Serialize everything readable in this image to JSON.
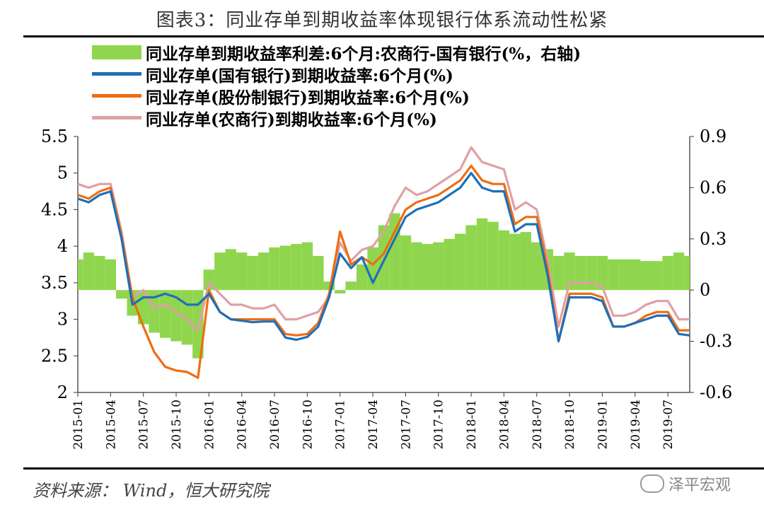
{
  "title": "图表3：同业存单到期收益率体现银行体系流动性松紧",
  "legend": [
    {
      "label": "同业存单到期收益率利差:6个月:农商行-国有银行(%，右轴)",
      "color": "#8fd64e",
      "kind": "area"
    },
    {
      "label": "同业存单(国有银行)到期收益率:6个月(%)",
      "color": "#1f6fb8",
      "kind": "line"
    },
    {
      "label": "同业存单(股份制银行)到期收益率:6个月(%)",
      "color": "#ee6d11",
      "kind": "line"
    },
    {
      "label": "同业存单(农商行)到期收益率:6个月(%)",
      "color": "#e0a0a4",
      "kind": "line"
    }
  ],
  "source": "资料来源： Wind，恒大研究院",
  "watermark": "泽平宏观",
  "chart_data": {
    "type": "line",
    "x_ticks": [
      "2015-01",
      "2015-04",
      "2015-07",
      "2015-10",
      "2016-01",
      "2016-04",
      "2016-07",
      "2016-10",
      "2017-01",
      "2017-04",
      "2017-07",
      "2017-10",
      "2018-01",
      "2018-04",
      "2018-07",
      "2018-10",
      "2019-01",
      "2019-04",
      "2019-07"
    ],
    "left_axis": {
      "ticks": [
        "5.5",
        "5",
        "4.5",
        "4",
        "3.5",
        "3",
        "2.5",
        "2"
      ],
      "ylim": [
        2,
        5.5
      ]
    },
    "right_axis": {
      "ticks": [
        "0.9",
        "0.6",
        "0.3",
        "0",
        "-0.3",
        "-0.6"
      ],
      "ylim": [
        -0.6,
        0.9
      ]
    },
    "months_x": [
      0,
      1,
      2,
      3,
      4,
      5,
      6,
      7,
      8,
      9,
      10,
      11,
      12,
      13,
      14,
      15,
      16,
      17,
      18,
      19,
      20,
      21,
      22,
      23,
      24,
      25,
      26,
      27,
      28,
      29,
      30,
      31,
      32,
      33,
      34,
      35,
      36,
      37,
      38,
      39,
      40,
      41,
      42,
      43,
      44,
      45,
      46,
      47,
      48,
      49,
      50,
      51,
      52,
      53,
      54,
      55,
      56
    ],
    "x_labels_by_month": [
      "2015-01",
      "2015-02",
      "2015-03",
      "2015-04",
      "2015-05",
      "2015-06",
      "2015-07",
      "2015-08",
      "2015-09",
      "2015-10",
      "2015-11",
      "2015-12",
      "2016-01",
      "2016-02",
      "2016-03",
      "2016-04",
      "2016-05",
      "2016-06",
      "2016-07",
      "2016-08",
      "2016-09",
      "2016-10",
      "2016-11",
      "2016-12",
      "2017-01",
      "2017-02",
      "2017-03",
      "2017-04",
      "2017-05",
      "2017-06",
      "2017-07",
      "2017-08",
      "2017-09",
      "2017-10",
      "2017-11",
      "2017-12",
      "2018-01",
      "2018-02",
      "2018-03",
      "2018-04",
      "2018-05",
      "2018-06",
      "2018-07",
      "2018-08",
      "2018-09",
      "2018-10",
      "2018-11",
      "2018-12",
      "2019-01",
      "2019-02",
      "2019-03",
      "2019-04",
      "2019-05",
      "2019-06",
      "2019-07",
      "2019-08",
      "2019-09"
    ],
    "series": [
      {
        "name": "同业存单到期收益率利差:6个月:农商行-国有银行(%，右轴)",
        "axis": "right",
        "values": [
          0.18,
          0.22,
          0.2,
          0.18,
          -0.05,
          -0.15,
          -0.2,
          -0.25,
          -0.28,
          -0.3,
          -0.32,
          -0.4,
          0.12,
          0.22,
          0.24,
          0.22,
          0.2,
          0.22,
          0.25,
          0.26,
          0.27,
          0.28,
          0.2,
          0.05,
          -0.02,
          0.05,
          0.15,
          0.25,
          0.38,
          0.45,
          0.32,
          0.28,
          0.27,
          0.28,
          0.3,
          0.33,
          0.38,
          0.42,
          0.4,
          0.35,
          0.33,
          0.34,
          0.28,
          0.24,
          0.2,
          0.22,
          0.2,
          0.2,
          0.2,
          0.18,
          0.18,
          0.18,
          0.17,
          0.17,
          0.2,
          0.22,
          0.2
        ]
      },
      {
        "name": "同业存单(国有银行)到期收益率:6个月(%)",
        "axis": "left",
        "values": [
          4.65,
          4.6,
          4.7,
          4.75,
          4.1,
          3.2,
          3.3,
          3.3,
          3.35,
          3.3,
          3.2,
          3.2,
          3.35,
          3.1,
          3.0,
          2.98,
          2.96,
          2.97,
          2.97,
          2.75,
          2.72,
          2.76,
          2.9,
          3.3,
          3.9,
          3.7,
          3.85,
          3.5,
          3.8,
          4.1,
          4.4,
          4.5,
          4.55,
          4.6,
          4.7,
          4.8,
          5.0,
          4.8,
          4.75,
          4.75,
          4.2,
          4.3,
          4.3,
          3.6,
          2.7,
          3.3,
          3.3,
          3.3,
          3.25,
          2.9,
          2.9,
          2.95,
          3.0,
          3.05,
          3.05,
          2.8,
          2.78
        ]
      },
      {
        "name": "同业存单(股份制银行)到期收益率:6个月(%)",
        "axis": "left",
        "values": [
          4.7,
          4.65,
          4.75,
          4.8,
          4.15,
          3.3,
          2.9,
          2.55,
          2.35,
          2.3,
          2.28,
          2.2,
          3.4,
          3.1,
          3.0,
          3.0,
          3.0,
          3.0,
          3.0,
          2.8,
          2.78,
          2.8,
          2.95,
          3.35,
          4.2,
          3.75,
          3.85,
          3.75,
          3.9,
          4.2,
          4.5,
          4.6,
          4.65,
          4.7,
          4.8,
          4.9,
          5.1,
          4.9,
          4.85,
          4.85,
          4.3,
          4.4,
          4.4,
          3.7,
          2.7,
          3.35,
          3.35,
          3.35,
          3.3,
          2.9,
          2.9,
          2.95,
          3.05,
          3.1,
          3.1,
          2.85,
          2.85
        ]
      },
      {
        "name": "同业存单(农商行)到期收益率:6个月(%)",
        "axis": "left",
        "values": [
          4.85,
          4.8,
          4.85,
          4.85,
          4.2,
          3.3,
          3.4,
          3.15,
          3.2,
          3.1,
          3.0,
          2.85,
          3.5,
          3.35,
          3.2,
          3.2,
          3.15,
          3.15,
          3.2,
          3.0,
          3.0,
          3.05,
          3.1,
          3.3,
          4.05,
          3.8,
          3.95,
          4.0,
          4.2,
          4.55,
          4.8,
          4.7,
          4.75,
          4.85,
          4.95,
          5.05,
          5.35,
          5.15,
          5.1,
          5.05,
          4.5,
          4.6,
          4.5,
          3.8,
          2.9,
          3.5,
          3.5,
          3.5,
          3.45,
          3.05,
          3.05,
          3.1,
          3.2,
          3.25,
          3.25,
          3.0,
          3.0
        ]
      }
    ]
  }
}
